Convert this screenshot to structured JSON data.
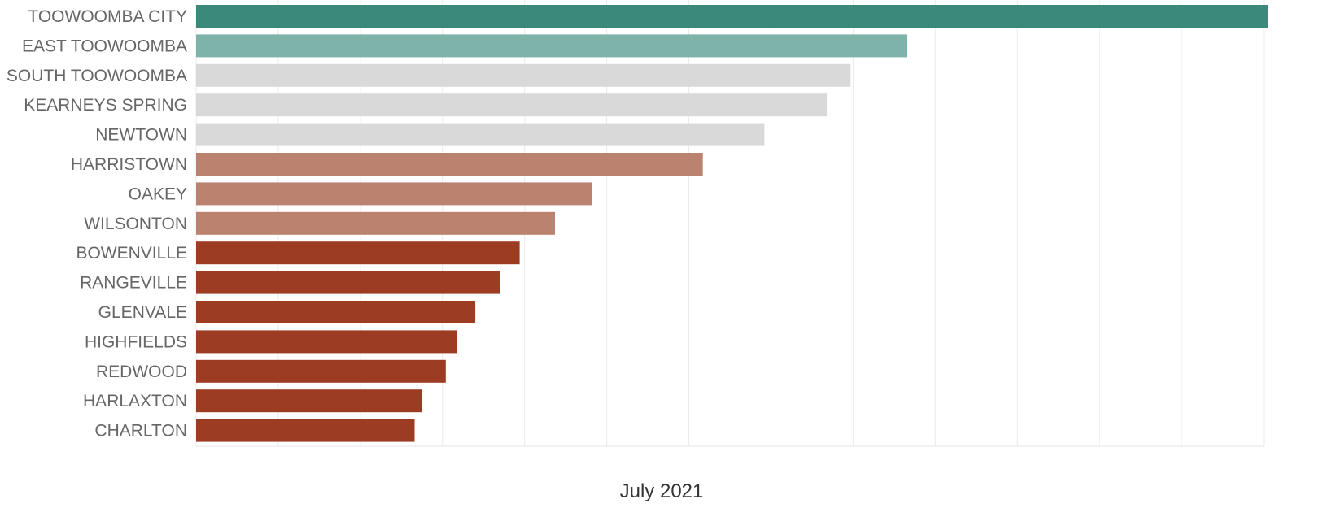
{
  "chart_data": {
    "type": "bar",
    "orientation": "horizontal",
    "xlabel": "July 2021",
    "xlim": [
      0,
      13
    ],
    "grid": true,
    "gridlines": 13,
    "categories": [
      "TOOWOOMBA CITY",
      "EAST TOOWOOMBA",
      "SOUTH TOOWOOMBA",
      "KEARNEYS SPRING",
      "NEWTOWN",
      "HARRISTOWN",
      "OAKEY",
      "WILSONTON",
      "BOWENVILLE",
      "RANGEVILLE",
      "GLENVALE",
      "HIGHFIELDS",
      "REDWOOD",
      "HARLAXTON",
      "CHARLTON"
    ],
    "values": [
      13.05,
      8.65,
      7.97,
      7.68,
      6.92,
      6.17,
      4.82,
      4.37,
      3.94,
      3.7,
      3.4,
      3.18,
      3.04,
      2.75,
      2.66
    ],
    "bar_colors": [
      "#3a897a",
      "#7db3a8",
      "#d9d9d9",
      "#d9d9d9",
      "#d9d9d9",
      "#bc8270",
      "#bc8270",
      "#bc8270",
      "#9c3c22",
      "#9c3c22",
      "#9c3c22",
      "#9c3c22",
      "#9c3c22",
      "#9c3c22",
      "#9c3c22"
    ]
  }
}
